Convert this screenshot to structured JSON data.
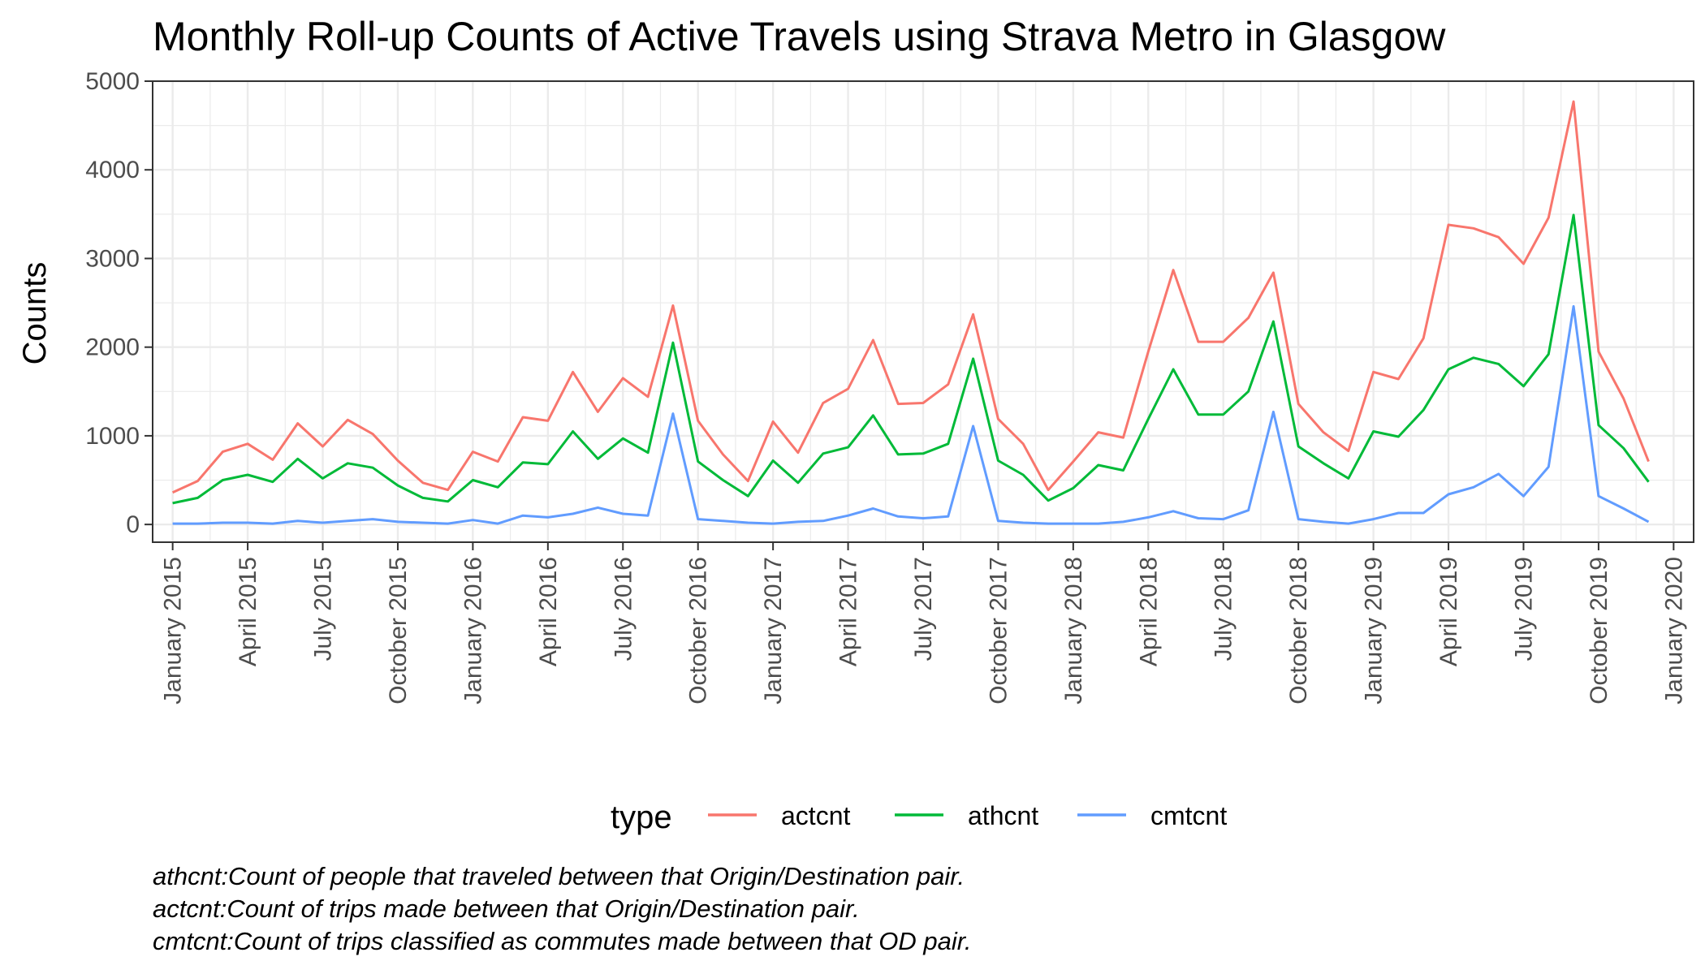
{
  "chart_data": {
    "type": "line",
    "title": "Monthly Roll-up Counts of Active Travels using Strava Metro in Glasgow",
    "xlabel": "",
    "ylabel": "Counts",
    "ylim": [
      -200,
      5000
    ],
    "y_ticks": [
      0,
      1000,
      2000,
      3000,
      4000,
      5000
    ],
    "x_start": "2015-01",
    "x_ticks": [
      {
        "label": "January 2015",
        "month_index": 0
      },
      {
        "label": "April 2015",
        "month_index": 3
      },
      {
        "label": "July 2015",
        "month_index": 6
      },
      {
        "label": "October 2015",
        "month_index": 9
      },
      {
        "label": "January 2016",
        "month_index": 12
      },
      {
        "label": "April 2016",
        "month_index": 15
      },
      {
        "label": "July 2016",
        "month_index": 18
      },
      {
        "label": "October 2016",
        "month_index": 21
      },
      {
        "label": "January 2017",
        "month_index": 24
      },
      {
        "label": "April 2017",
        "month_index": 27
      },
      {
        "label": "July 2017",
        "month_index": 30
      },
      {
        "label": "October 2017",
        "month_index": 33
      },
      {
        "label": "January 2018",
        "month_index": 36
      },
      {
        "label": "April 2018",
        "month_index": 39
      },
      {
        "label": "July 2018",
        "month_index": 42
      },
      {
        "label": "October 2018",
        "month_index": 45
      },
      {
        "label": "January 2019",
        "month_index": 48
      },
      {
        "label": "April 2019",
        "month_index": 51
      },
      {
        "label": "July 2019",
        "month_index": 54
      },
      {
        "label": "October 2019",
        "month_index": 57
      },
      {
        "label": "January 2020",
        "month_index": 60
      }
    ],
    "x_range_months": [
      -0.8,
      60.8
    ],
    "grid": true,
    "legend": {
      "title": "type",
      "position": "bottom"
    },
    "series": [
      {
        "name": "actcnt",
        "color": "#F8766D",
        "values": [
          360,
          490,
          820,
          910,
          730,
          1140,
          880,
          1180,
          1020,
          720,
          470,
          390,
          820,
          710,
          1210,
          1170,
          1720,
          1270,
          1650,
          1440,
          2470,
          1170,
          790,
          490,
          1160,
          810,
          1370,
          1530,
          2080,
          1360,
          1370,
          1580,
          2370,
          1190,
          910,
          390,
          710,
          1040,
          980,
          1950,
          2870,
          2060,
          2060,
          2330,
          2840,
          1360,
          1040,
          830,
          1720,
          1640,
          2100,
          3380,
          3340,
          3240,
          2940,
          3460,
          4770,
          1950,
          1420,
          710
        ]
      },
      {
        "name": "athcnt",
        "color": "#00BA38",
        "values": [
          240,
          300,
          500,
          560,
          480,
          740,
          520,
          690,
          640,
          440,
          300,
          260,
          500,
          420,
          700,
          680,
          1050,
          740,
          970,
          810,
          2050,
          710,
          500,
          320,
          720,
          470,
          800,
          870,
          1230,
          790,
          800,
          910,
          1870,
          720,
          560,
          270,
          410,
          670,
          610,
          1190,
          1750,
          1240,
          1240,
          1500,
          2290,
          880,
          690,
          520,
          1050,
          990,
          1290,
          1750,
          1880,
          1810,
          1560,
          1920,
          3490,
          1120,
          860,
          480
        ]
      },
      {
        "name": "cmtcnt",
        "color": "#619CFF",
        "values": [
          10,
          10,
          20,
          20,
          10,
          40,
          20,
          40,
          60,
          30,
          20,
          10,
          50,
          10,
          100,
          80,
          120,
          190,
          120,
          100,
          1250,
          60,
          40,
          20,
          10,
          30,
          40,
          100,
          180,
          90,
          70,
          90,
          1110,
          40,
          20,
          10,
          10,
          10,
          30,
          80,
          150,
          70,
          60,
          160,
          1270,
          60,
          30,
          10,
          60,
          130,
          130,
          340,
          420,
          570,
          320,
          650,
          2460,
          320,
          180,
          30
        ]
      }
    ],
    "caption_lines": [
      "athcnt:Count of people that traveled between that Origin/Destination pair.",
      "actcnt:Count of trips made between that Origin/Destination pair.",
      "cmtcnt:Count of trips classified as commutes made between that OD pair."
    ]
  }
}
